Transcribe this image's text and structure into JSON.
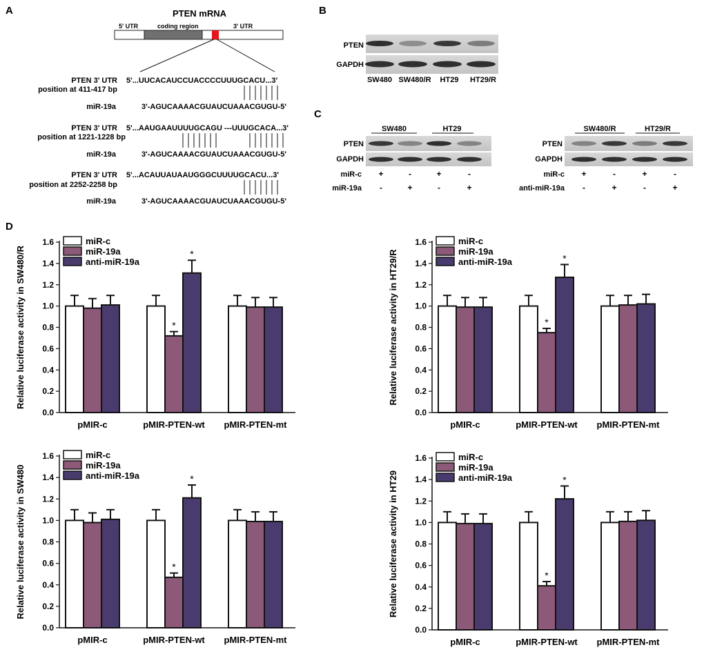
{
  "panels": {
    "A": "A",
    "B": "B",
    "C": "C",
    "D": "D"
  },
  "panel_a": {
    "title": "PTEN mRNA",
    "utr5": "5' UTR",
    "coding": "coding region",
    "utr3": "3' UTR",
    "sites": [
      {
        "label1": "PTEN 3' UTR",
        "label2": "position at 411-417 bp",
        "mirna_label": "miR-19a",
        "utr_seq": "5'...UUCACAUCCUACCCCUUUGCACU...3'",
        "mir_seq": "3'-AGUCAAAACGUAUCUAAACGUGU-5'",
        "pairs": 7
      },
      {
        "label1": "PTEN 3' UTR",
        "label2": "position at 1221-1228 bp",
        "mirna_label": "miR-19a",
        "utr_seq": "5'...AAUGAAUUUUGCAGU ---UUUGCACA...3'",
        "mir_seq": "3'-AGUCAAAACGUAUCUAAACGUGU-5'",
        "pairs": 14
      },
      {
        "label1": "PTEN 3' UTR",
        "label2": "position at 2252-2258 bp",
        "mirna_label": "miR-19a",
        "utr_seq": "5'...ACAUUAUAAUGGGCUUUUGCACU...3'",
        "mir_seq": "3'-AGUCAAAACGUAUCUAAACGUGU-5'",
        "pairs": 7
      }
    ]
  },
  "panel_b": {
    "rows": [
      "PTEN",
      "GAPDH"
    ],
    "lanes": [
      "SW480",
      "SW480/R",
      "HT29",
      "HT29/R"
    ],
    "pten_band_intensity": [
      0.9,
      0.35,
      0.85,
      0.45
    ],
    "gapdh_band_intensity": [
      0.9,
      0.9,
      0.9,
      0.9
    ]
  },
  "panel_c": {
    "left": {
      "groups": [
        "SW480",
        "HT29"
      ],
      "rows": [
        "PTEN",
        "GAPDH"
      ],
      "treatments": [
        {
          "label": "miR-c",
          "signs": [
            "+",
            "-",
            "+",
            "-"
          ]
        },
        {
          "label": "miR-19a",
          "signs": [
            "-",
            "+",
            "-",
            "+"
          ]
        }
      ],
      "pten_band_intensity": [
        0.85,
        0.4,
        0.9,
        0.4
      ]
    },
    "right": {
      "groups": [
        "SW480/R",
        "HT29/R"
      ],
      "rows": [
        "PTEN",
        "GAPDH"
      ],
      "treatments": [
        {
          "label": "miR-c",
          "signs": [
            "+",
            "-",
            "+",
            "-"
          ]
        },
        {
          "label": "anti-miR-19a",
          "signs": [
            "-",
            "+",
            "-",
            "+"
          ]
        }
      ],
      "pten_band_intensity": [
        0.4,
        0.85,
        0.45,
        0.85
      ]
    }
  },
  "colors": {
    "miR-c": "#ffffff",
    "miR-19a": "#8c5a78",
    "anti-miR-19a": "#4a3b6e"
  },
  "chart_data": [
    {
      "type": "bar",
      "ylabel": "Relative luciferase activity in SW480/R",
      "categories": [
        "pMIR-c",
        "pMIR-PTEN-wt",
        "pMIR-PTEN-mt"
      ],
      "ylim": [
        0,
        1.6
      ],
      "yticks": [
        "0.0",
        "0.2",
        "0.4",
        "0.6",
        "0.8",
        "1.0",
        "1.2",
        "1.4",
        "1.6"
      ],
      "series": [
        {
          "name": "miR-c",
          "values": [
            1.0,
            1.0,
            1.0
          ],
          "errors": [
            0.1,
            0.1,
            0.1
          ]
        },
        {
          "name": "miR-19a",
          "values": [
            0.98,
            0.72,
            0.99
          ],
          "errors": [
            0.09,
            0.04,
            0.09
          ]
        },
        {
          "name": "anti-miR-19a",
          "values": [
            1.01,
            1.31,
            0.99
          ],
          "errors": [
            0.09,
            0.12,
            0.09
          ]
        }
      ],
      "annotations": [
        {
          "series": 1,
          "category": 1,
          "text": "*"
        },
        {
          "series": 2,
          "category": 1,
          "text": "*"
        }
      ]
    },
    {
      "type": "bar",
      "ylabel": "Relative luciferase activity in HT29/R",
      "categories": [
        "pMIR-c",
        "pMIR-PTEN-wt",
        "pMIR-PTEN-mt"
      ],
      "ylim": [
        0,
        1.6
      ],
      "yticks": [
        "0.0",
        "0.2",
        "0.4",
        "0.6",
        "0.8",
        "1.0",
        "1.2",
        "1.4",
        "1.6"
      ],
      "series": [
        {
          "name": "miR-c",
          "values": [
            1.0,
            1.0,
            1.0
          ],
          "errors": [
            0.1,
            0.1,
            0.1
          ]
        },
        {
          "name": "miR-19a",
          "values": [
            0.99,
            0.75,
            1.01
          ],
          "errors": [
            0.09,
            0.04,
            0.09
          ]
        },
        {
          "name": "anti-miR-19a",
          "values": [
            0.99,
            1.27,
            1.02
          ],
          "errors": [
            0.09,
            0.12,
            0.09
          ]
        }
      ],
      "annotations": [
        {
          "series": 1,
          "category": 1,
          "text": "*"
        },
        {
          "series": 2,
          "category": 1,
          "text": "*"
        }
      ]
    },
    {
      "type": "bar",
      "ylabel": "Relative luciferase activity in SW480",
      "categories": [
        "pMIR-c",
        "pMIR-PTEN-wt",
        "pMIR-PTEN-mt"
      ],
      "ylim": [
        0,
        1.6
      ],
      "yticks": [
        "0.0",
        "0.2",
        "0.4",
        "0.6",
        "0.8",
        "1.0",
        "1.2",
        "1.4",
        "1.6"
      ],
      "series": [
        {
          "name": "miR-c",
          "values": [
            1.0,
            1.0,
            1.0
          ],
          "errors": [
            0.1,
            0.1,
            0.1
          ]
        },
        {
          "name": "miR-19a",
          "values": [
            0.98,
            0.47,
            0.99
          ],
          "errors": [
            0.09,
            0.04,
            0.09
          ]
        },
        {
          "name": "anti-miR-19a",
          "values": [
            1.01,
            1.21,
            0.99
          ],
          "errors": [
            0.09,
            0.12,
            0.09
          ]
        }
      ],
      "annotations": [
        {
          "series": 1,
          "category": 1,
          "text": "*"
        },
        {
          "series": 2,
          "category": 1,
          "text": "*"
        }
      ]
    },
    {
      "type": "bar",
      "ylabel": "Relative luciferase activity in HT29",
      "categories": [
        "pMIR-c",
        "pMIR-PTEN-wt",
        "pMIR-PTEN-mt"
      ],
      "ylim": [
        0,
        1.6
      ],
      "yticks": [
        "0.0",
        "0.2",
        "0.4",
        "0.6",
        "0.8",
        "1.0",
        "1.2",
        "1.4",
        "1.6"
      ],
      "series": [
        {
          "name": "miR-c",
          "values": [
            1.0,
            1.0,
            1.0
          ],
          "errors": [
            0.1,
            0.1,
            0.1
          ]
        },
        {
          "name": "miR-19a",
          "values": [
            0.99,
            0.41,
            1.01
          ],
          "errors": [
            0.09,
            0.04,
            0.09
          ]
        },
        {
          "name": "anti-miR-19a",
          "values": [
            0.99,
            1.22,
            1.02
          ],
          "errors": [
            0.09,
            0.12,
            0.09
          ]
        }
      ],
      "annotations": [
        {
          "series": 1,
          "category": 1,
          "text": "*"
        },
        {
          "series": 2,
          "category": 1,
          "text": "*"
        }
      ]
    }
  ]
}
